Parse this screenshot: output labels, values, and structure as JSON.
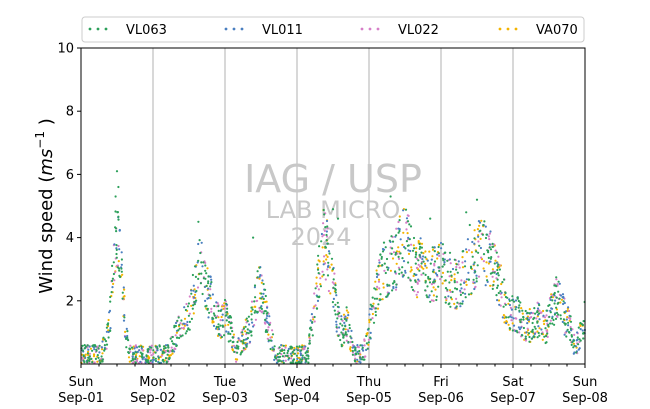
{
  "chart_data": {
    "type": "scatter",
    "ylabel_prefix": "Wind speed (",
    "ylabel_unit": "ms",
    "ylabel_exp": "−1",
    "ylabel_suffix": " )",
    "ylim": [
      0,
      10
    ],
    "yticks": [
      2,
      4,
      6,
      8,
      10
    ],
    "xlim_days": [
      0,
      7
    ],
    "x_ticks": [
      {
        "day": "Sun",
        "date": "Sep-01"
      },
      {
        "day": "Mon",
        "date": "Sep-02"
      },
      {
        "day": "Tue",
        "date": "Sep-03"
      },
      {
        "day": "Wed",
        "date": "Sep-04"
      },
      {
        "day": "Thu",
        "date": "Sep-05"
      },
      {
        "day": "Fri",
        "date": "Sep-06"
      },
      {
        "day": "Sat",
        "date": "Sep-07"
      },
      {
        "day": "Sun",
        "date": "Sep-08"
      }
    ],
    "grid": "x-major",
    "legend_position": "top",
    "series": [
      {
        "name": "VL063",
        "color": "#2ca05a"
      },
      {
        "name": "VL011",
        "color": "#4a7fc0"
      },
      {
        "name": "VL022",
        "color": "#d67fc8"
      },
      {
        "name": "VA070",
        "color": "#f4b400"
      }
    ],
    "profile_hourly": [
      [
        0,
        0.05
      ],
      [
        0.25,
        0.1
      ],
      [
        0.33,
        0.6
      ],
      [
        0.375,
        1.0
      ],
      [
        0.42,
        2.0
      ],
      [
        0.46,
        3.5
      ],
      [
        0.5,
        4.0
      ],
      [
        0.54,
        3.6
      ],
      [
        0.58,
        2.5
      ],
      [
        0.62,
        1.0
      ],
      [
        0.67,
        0.3
      ],
      [
        0.75,
        0.1
      ],
      [
        0.83,
        0.3
      ],
      [
        0.92,
        0.1
      ],
      [
        1.0,
        0.2
      ],
      [
        1.2,
        0.25
      ],
      [
        1.3,
        0.8
      ],
      [
        1.4,
        1.2
      ],
      [
        1.5,
        1.5
      ],
      [
        1.58,
        2.5
      ],
      [
        1.64,
        3.5
      ],
      [
        1.7,
        3.0
      ],
      [
        1.75,
        2.3
      ],
      [
        1.82,
        2.0
      ],
      [
        1.88,
        1.4
      ],
      [
        1.95,
        1.3
      ],
      [
        2.0,
        1.5
      ],
      [
        2.08,
        1.1
      ],
      [
        2.15,
        0.3
      ],
      [
        2.25,
        0.8
      ],
      [
        2.35,
        1.2
      ],
      [
        2.45,
        2.2
      ],
      [
        2.5,
        2.5
      ],
      [
        2.55,
        1.8
      ],
      [
        2.62,
        1.0
      ],
      [
        2.7,
        0.3
      ],
      [
        2.8,
        0.3
      ],
      [
        2.88,
        0.2
      ],
      [
        3.0,
        0.15
      ],
      [
        3.15,
        0.2
      ],
      [
        3.25,
        2.0
      ],
      [
        3.33,
        3.2
      ],
      [
        3.38,
        4.0
      ],
      [
        3.45,
        3.2
      ],
      [
        3.5,
        2.6
      ],
      [
        3.55,
        1.5
      ],
      [
        3.62,
        1.0
      ],
      [
        3.7,
        1.3
      ],
      [
        3.75,
        0.8
      ],
      [
        3.8,
        0.3
      ],
      [
        3.85,
        0.2
      ],
      [
        3.95,
        0.5
      ],
      [
        4.1,
        2.2
      ],
      [
        4.2,
        3.0
      ],
      [
        4.35,
        3.2
      ],
      [
        4.5,
        4.0
      ],
      [
        4.58,
        3.5
      ],
      [
        4.65,
        3.0
      ],
      [
        4.75,
        3.2
      ],
      [
        4.85,
        2.8
      ],
      [
        5.0,
        3.0
      ],
      [
        5.15,
        2.6
      ],
      [
        5.25,
        2.5
      ],
      [
        5.35,
        3.0
      ],
      [
        5.45,
        3.2
      ],
      [
        5.5,
        3.5
      ],
      [
        5.6,
        3.5
      ],
      [
        5.7,
        3.2
      ],
      [
        5.8,
        2.6
      ],
      [
        5.88,
        2.0
      ],
      [
        5.95,
        1.7
      ],
      [
        6.05,
        1.6
      ],
      [
        6.15,
        1.3
      ],
      [
        6.25,
        1.2
      ],
      [
        6.35,
        1.4
      ],
      [
        6.45,
        1.1
      ],
      [
        6.55,
        1.8
      ],
      [
        6.62,
        2.2
      ],
      [
        6.7,
        1.6
      ],
      [
        6.78,
        1.2
      ],
      [
        6.85,
        0.7
      ],
      [
        6.92,
        0.8
      ],
      [
        7.0,
        1.5
      ]
    ],
    "watermark_line1": "IAG / USP",
    "watermark_line2": "LAB MICRO",
    "watermark_line3": "2024"
  }
}
